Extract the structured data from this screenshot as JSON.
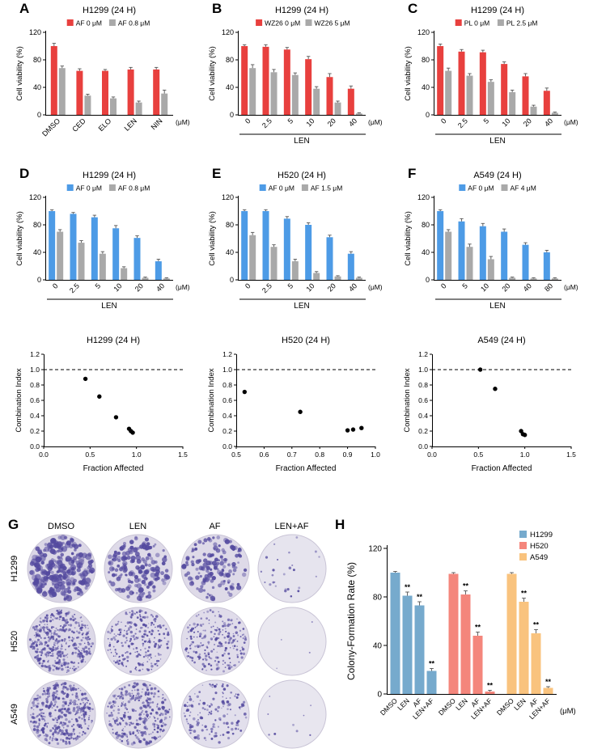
{
  "chart_data": [
    {
      "panel": "A",
      "type": "bar",
      "title": "H1299 (24 H)",
      "ylabel": "Cell viability (%)",
      "ylim": [
        0,
        120
      ],
      "yticks": [
        0,
        40,
        80,
        120
      ],
      "categories": [
        "DMSO",
        "CED",
        "ELO",
        "LEN",
        "NIN"
      ],
      "xunit": "(μM)",
      "xgroup": null,
      "series": [
        {
          "name": "AF 0 μM",
          "color": "#e8403e",
          "values": [
            100,
            64,
            64,
            66,
            66
          ],
          "errors": [
            4,
            3,
            2,
            3,
            3
          ]
        },
        {
          "name": "AF 0.8 μM",
          "color": "#a9a9a9",
          "values": [
            68,
            28,
            24,
            18,
            31
          ],
          "errors": [
            3,
            2,
            2,
            2,
            5
          ]
        }
      ]
    },
    {
      "panel": "B",
      "type": "bar",
      "title": "H1299 (24 H)",
      "ylabel": "Cell viability (%)",
      "ylim": [
        0,
        120
      ],
      "yticks": [
        0,
        40,
        80,
        120
      ],
      "categories": [
        "0",
        "2.5",
        "5",
        "10",
        "20",
        "40"
      ],
      "xunit": "(μM)",
      "xgroup": "LEN",
      "series": [
        {
          "name": "WZ26 0 μM",
          "color": "#e8403e",
          "values": [
            100,
            99,
            95,
            81,
            55,
            38
          ],
          "errors": [
            2,
            3,
            3,
            4,
            5,
            4
          ]
        },
        {
          "name": "WZ26 5 μM",
          "color": "#a9a9a9",
          "values": [
            68,
            62,
            58,
            38,
            18,
            2
          ],
          "errors": [
            5,
            4,
            3,
            3,
            2,
            1
          ]
        }
      ]
    },
    {
      "panel": "C",
      "type": "bar",
      "title": "H1299 (24 H)",
      "ylabel": "Cell viability (%)",
      "ylim": [
        0,
        120
      ],
      "yticks": [
        0,
        40,
        80,
        120
      ],
      "categories": [
        "0",
        "2.5",
        "5",
        "10",
        "20",
        "40"
      ],
      "xunit": "(μM)",
      "xgroup": "LEN",
      "series": [
        {
          "name": "PL 0 μM",
          "color": "#e8403e",
          "values": [
            100,
            92,
            91,
            74,
            56,
            35
          ],
          "errors": [
            3,
            3,
            3,
            3,
            4,
            4
          ]
        },
        {
          "name": "PL 2.5 μM",
          "color": "#a9a9a9",
          "values": [
            64,
            57,
            48,
            33,
            12,
            3
          ],
          "errors": [
            4,
            3,
            3,
            3,
            2,
            1
          ]
        }
      ]
    },
    {
      "panel": "D",
      "type": "bar",
      "title": "H1299 (24 H)",
      "ylabel": "Cell viability (%)",
      "ylim": [
        0,
        120
      ],
      "yticks": [
        0,
        40,
        80,
        120
      ],
      "categories": [
        "0",
        "2.5",
        "5",
        "10",
        "20",
        "40"
      ],
      "xunit": "(μM)",
      "xgroup": "LEN",
      "series": [
        {
          "name": "AF 0 μM",
          "color": "#4d9be6",
          "values": [
            100,
            96,
            91,
            75,
            61,
            27
          ],
          "errors": [
            2,
            2,
            3,
            4,
            3,
            3
          ]
        },
        {
          "name": "AF 0.8 μM",
          "color": "#a9a9a9",
          "values": [
            70,
            54,
            38,
            17,
            3,
            2
          ],
          "errors": [
            3,
            3,
            3,
            2,
            1,
            1
          ]
        }
      ]
    },
    {
      "panel": "E",
      "type": "bar",
      "title": "H520 (24 H)",
      "ylabel": "Cell viability (%)",
      "ylim": [
        0,
        120
      ],
      "yticks": [
        0,
        40,
        80,
        120
      ],
      "categories": [
        "0",
        "2.5",
        "5",
        "10",
        "20",
        "40"
      ],
      "xunit": "(μM)",
      "xgroup": "LEN",
      "series": [
        {
          "name": "AF 0 μM",
          "color": "#4d9be6",
          "values": [
            100,
            100,
            89,
            80,
            62,
            38
          ],
          "errors": [
            2,
            2,
            3,
            3,
            3,
            3
          ]
        },
        {
          "name": "AF 1.5 μM",
          "color": "#a9a9a9",
          "values": [
            65,
            48,
            27,
            10,
            5,
            3
          ],
          "errors": [
            4,
            3,
            3,
            2,
            1,
            1
          ]
        }
      ]
    },
    {
      "panel": "F",
      "type": "bar",
      "title": "A549 (24 H)",
      "ylabel": "Cell viability (%)",
      "ylim": [
        0,
        120
      ],
      "yticks": [
        0,
        40,
        80,
        120
      ],
      "categories": [
        "0",
        "5",
        "10",
        "20",
        "40",
        "80"
      ],
      "xunit": "(μM)",
      "xgroup": "LEN",
      "series": [
        {
          "name": "AF 0 μM",
          "color": "#4d9be6",
          "values": [
            100,
            85,
            78,
            70,
            51,
            40
          ],
          "errors": [
            2,
            4,
            4,
            4,
            3,
            3
          ]
        },
        {
          "name": "AF 4 μM",
          "color": "#a9a9a9",
          "values": [
            70,
            48,
            30,
            3,
            2,
            2
          ],
          "errors": [
            3,
            4,
            4,
            1,
            1,
            1
          ]
        }
      ]
    },
    {
      "type": "scatter",
      "title": "H1299 (24 H)",
      "xlabel": "Fraction Affected",
      "ylabel": "Combination Index",
      "xlim": [
        0,
        1.5
      ],
      "xticks": [
        0,
        0.5,
        1,
        1.5
      ],
      "ylim": [
        0,
        1.2
      ],
      "yticks": [
        0,
        0.2,
        0.4,
        0.6,
        0.8,
        1,
        1.2
      ],
      "refline_y": 1.0,
      "points": [
        [
          0.45,
          0.88
        ],
        [
          0.6,
          0.65
        ],
        [
          0.78,
          0.38
        ],
        [
          0.92,
          0.23
        ],
        [
          0.94,
          0.2
        ],
        [
          0.96,
          0.18
        ]
      ]
    },
    {
      "type": "scatter",
      "title": "H520 (24 H)",
      "xlabel": "Fraction Affected",
      "ylabel": "Combination Index",
      "xlim": [
        0.5,
        1.0
      ],
      "xticks": [
        0.5,
        0.6,
        0.7,
        0.8,
        0.9,
        1.0
      ],
      "ylim": [
        0,
        1.2
      ],
      "yticks": [
        0,
        0.2,
        0.4,
        0.6,
        0.8,
        1,
        1.2
      ],
      "refline_y": 1.0,
      "points": [
        [
          0.53,
          0.71
        ],
        [
          0.73,
          0.45
        ],
        [
          0.9,
          0.21
        ],
        [
          0.92,
          0.22
        ],
        [
          0.95,
          0.24
        ]
      ]
    },
    {
      "type": "scatter",
      "title": "A549 (24 H)",
      "xlabel": "Fraction Affected",
      "ylabel": "Combination Index",
      "xlim": [
        0,
        1.5
      ],
      "xticks": [
        0,
        0.5,
        1,
        1.5
      ],
      "ylim": [
        0,
        1.2
      ],
      "yticks": [
        0,
        0.2,
        0.4,
        0.6,
        0.8,
        1,
        1.2
      ],
      "refline_y": 1.0,
      "points": [
        [
          0.52,
          1.0
        ],
        [
          0.68,
          0.75
        ],
        [
          0.96,
          0.2
        ],
        [
          0.98,
          0.16
        ],
        [
          1.0,
          0.15
        ]
      ]
    },
    {
      "panel": "H",
      "type": "grouped_bar",
      "ylabel": "Colony-Formation Rate (%)",
      "ylim": [
        0,
        120
      ],
      "yticks": [
        0,
        40,
        80,
        120
      ],
      "categories": [
        "DMSO",
        "LEN",
        "AF",
        "LEN+AF"
      ],
      "xunit": "(μM)",
      "groups": [
        {
          "name": "H1299",
          "color": "#76aacd",
          "values": [
            100,
            81,
            73,
            19
          ],
          "errors": [
            1,
            3,
            3,
            2
          ],
          "sig": [
            "",
            "**",
            "**",
            "**"
          ]
        },
        {
          "name": "H520",
          "color": "#f4867c",
          "values": [
            99,
            82,
            48,
            2
          ],
          "errors": [
            1,
            3,
            3,
            1
          ],
          "sig": [
            "",
            "**",
            "**",
            "**"
          ]
        },
        {
          "name": "A549",
          "color": "#f9c37e",
          "values": [
            99,
            76,
            50,
            5
          ],
          "errors": [
            1,
            3,
            3,
            1
          ],
          "sig": [
            "",
            "**",
            "**",
            "**"
          ]
        }
      ]
    },
    {
      "panel": "G",
      "type": "colony_assay",
      "col_headers": [
        "DMSO",
        "LEN",
        "AF",
        "LEN+AF"
      ],
      "row_labels": [
        "H1299",
        "H520",
        "A549"
      ],
      "colony_color": "#544a9f",
      "dishes": [
        [
          {
            "count": 240,
            "rmin": 1.6,
            "rmax": 4.0,
            "bg": "#dbd7e6",
            "seed": 11
          },
          {
            "count": 170,
            "rmin": 1.4,
            "rmax": 3.4,
            "bg": "#dedae8",
            "seed": 12
          },
          {
            "count": 150,
            "rmin": 1.3,
            "rmax": 3.2,
            "bg": "#dedae8",
            "seed": 13
          },
          {
            "count": 26,
            "rmin": 0.9,
            "rmax": 1.8,
            "bg": "#e6e4ee",
            "seed": 14
          }
        ],
        [
          {
            "count": 420,
            "rmin": 0.7,
            "rmax": 1.8,
            "bg": "#dcd8e7",
            "seed": 21
          },
          {
            "count": 260,
            "rmin": 0.7,
            "rmax": 1.8,
            "bg": "#e0dcea",
            "seed": 22
          },
          {
            "count": 220,
            "rmin": 0.7,
            "rmax": 1.8,
            "bg": "#e0dcea",
            "seed": 23
          },
          {
            "count": 4,
            "rmin": 0.7,
            "rmax": 1.2,
            "bg": "#eae8f0",
            "seed": 24
          }
        ],
        [
          {
            "count": 380,
            "rmin": 0.7,
            "rmax": 2.0,
            "bg": "#dcd8e7",
            "seed": 31
          },
          {
            "count": 320,
            "rmin": 0.7,
            "rmax": 2.0,
            "bg": "#dedae8",
            "seed": 32
          },
          {
            "count": 150,
            "rmin": 0.7,
            "rmax": 1.9,
            "bg": "#e2dfec",
            "seed": 33
          },
          {
            "count": 9,
            "rmin": 0.8,
            "rmax": 1.5,
            "bg": "#e8e6ef",
            "seed": 34
          }
        ]
      ]
    }
  ]
}
